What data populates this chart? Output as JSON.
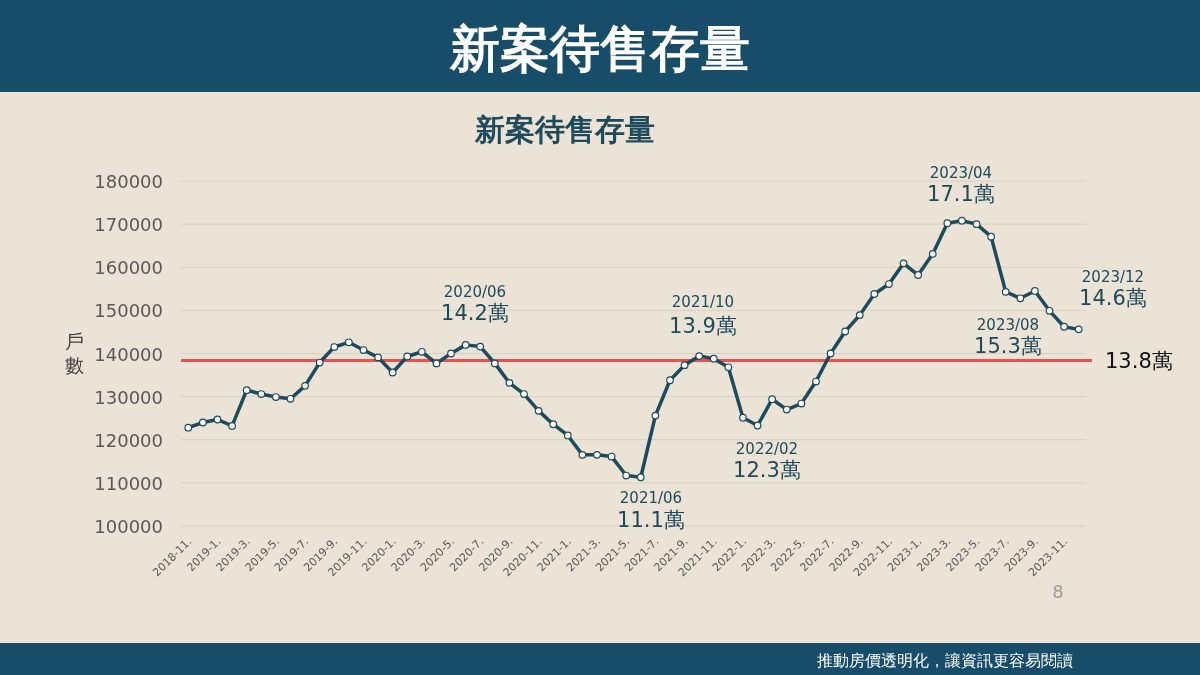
{
  "chart_data": {
    "type": "line",
    "title": "新案待售存量",
    "subtitle": "新案待售存量",
    "ylabel": "戶數",
    "categories": [
      "2018-11.",
      null,
      "2019-1.",
      null,
      "2019-3.",
      null,
      "2019-5.",
      null,
      "2019-7.",
      null,
      "2019-9.",
      null,
      "2019-11.",
      null,
      "2020-1.",
      null,
      "2020-3.",
      null,
      "2020-5.",
      null,
      "2020-7.",
      null,
      "2020-9.",
      null,
      "2020-11.",
      null,
      "2021-1.",
      null,
      "2021-3.",
      null,
      "2021-5.",
      null,
      "2021-7.",
      null,
      "2021-9.",
      null,
      "2021-11.",
      null,
      "2022-1.",
      null,
      "2022-3.",
      null,
      "2022-5.",
      null,
      "2022-7.",
      null,
      "2022-9.",
      null,
      "2022-11.",
      null,
      "2023-1.",
      null,
      "2023-3.",
      null,
      "2023-5.",
      null,
      "2023-7.",
      null,
      "2023-9.",
      null,
      "2023-11.",
      null
    ],
    "series": [
      {
        "color": "#1d4a5c",
        "values": [
          122800,
          124000,
          124700,
          123200,
          131500,
          130600,
          129900,
          129500,
          132500,
          137900,
          141500,
          142600,
          140800,
          139100,
          135600,
          139300,
          140400,
          137700,
          140000,
          142000,
          141600,
          137700,
          133200,
          130600,
          126700,
          123600,
          121000,
          116500,
          116500,
          116100,
          111700,
          111300,
          125600,
          133800,
          137300,
          139400,
          138800,
          136800,
          125100,
          123300,
          129400,
          127000,
          128400,
          133500,
          140000,
          145100,
          148900,
          153800,
          156100,
          160900,
          158200,
          163100,
          170200,
          170800,
          170000,
          167100,
          154300,
          152800,
          154500,
          149900,
          146200,
          145600
        ]
      }
    ],
    "ylim": [
      100000,
      180000
    ],
    "yticks": [
      100000,
      110000,
      120000,
      130000,
      140000,
      150000,
      160000,
      170000,
      180000
    ],
    "grid": "y",
    "marker": "circle",
    "line_style": "solid",
    "ref_lines": [
      {
        "axis": "y",
        "value": 138400,
        "label": "13.8萬",
        "color": "#e8524f",
        "line_style": "solid"
      }
    ],
    "annotations": [
      "2020/06",
      "14.2萬",
      "2021/06",
      "11.1萬",
      "2021/10",
      "13.9萬",
      "2022/02",
      "12.3萬",
      "2023/04",
      "17.1萬",
      "2023/08",
      "15.3萬",
      "2023/12",
      "14.6萬",
      "8",
      "推動房價透明化，讓資訊更容易閱讀"
    ]
  }
}
